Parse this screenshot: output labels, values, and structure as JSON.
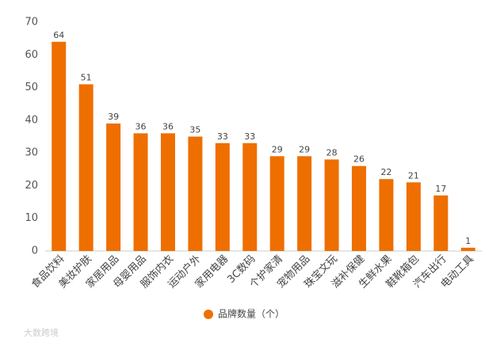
{
  "chart_data": {
    "type": "bar",
    "categories": [
      "食品饮料",
      "美妆护肤",
      "家居用品",
      "母婴用品",
      "服饰内衣",
      "运动户外",
      "家用电器",
      "3C数码",
      "个护家清",
      "宠物用品",
      "珠宝文玩",
      "滋补保健",
      "生鲜水果",
      "鞋靴箱包",
      "汽车出行",
      "电动工具"
    ],
    "series": [
      {
        "name": "品牌数量（个）",
        "color": "#ee6f00",
        "values": [
          64,
          51,
          39,
          36,
          36,
          35,
          33,
          33,
          29,
          29,
          28,
          26,
          22,
          21,
          17,
          1
        ]
      }
    ],
    "ylim": [
      0,
      70
    ],
    "yticks": [
      0,
      10,
      20,
      30,
      40,
      50,
      60,
      70
    ],
    "grid": false,
    "legend": "bottom",
    "watermark": "大数跨境"
  }
}
